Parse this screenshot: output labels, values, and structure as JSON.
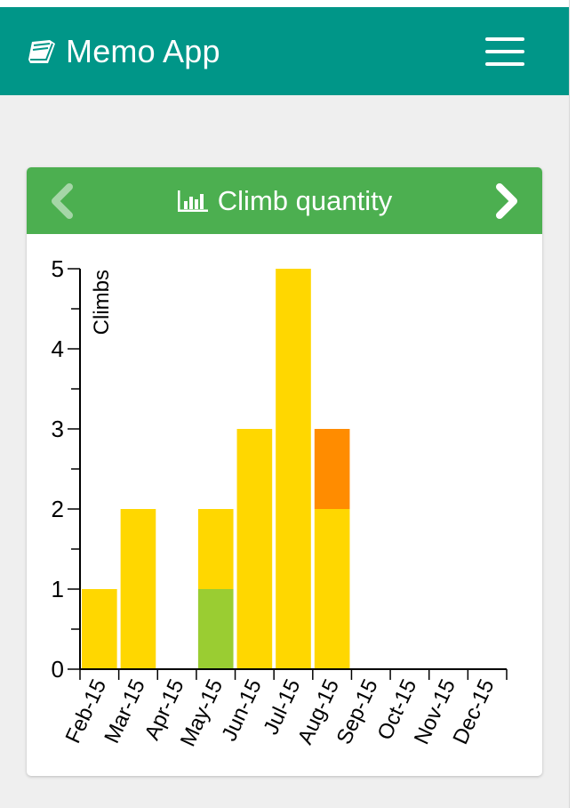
{
  "app": {
    "title": "Memo App",
    "brand_icon": "book-icon",
    "menu_icon": "hamburger-menu-icon"
  },
  "card": {
    "title": "Climb quantity",
    "title_icon": "bar-chart-icon",
    "prev_icon": "chevron-left-icon",
    "next_icon": "chevron-right-icon"
  },
  "colors": {
    "navbar": "#009688",
    "card_header": "#4caf50",
    "bar_yellow": "#ffd700",
    "bar_green": "#9acd32",
    "bar_orange": "#ff8c00"
  },
  "chart_data": {
    "type": "bar",
    "stacked": true,
    "categories": [
      "Feb-15",
      "Mar-15",
      "Apr-15",
      "May-15",
      "Jun-15",
      "Jul-15",
      "Aug-15",
      "Sep-15",
      "Oct-15",
      "Nov-15",
      "Dec-15"
    ],
    "series": [
      {
        "color": "#9acd32",
        "values": [
          0,
          0,
          0,
          1,
          0,
          0,
          0,
          0,
          0,
          0,
          0
        ]
      },
      {
        "color": "#ffd700",
        "values": [
          1,
          2,
          0,
          1,
          3,
          5,
          2,
          0,
          0,
          0,
          0
        ]
      },
      {
        "color": "#ff8c00",
        "values": [
          0,
          0,
          0,
          0,
          0,
          0,
          1,
          0,
          0,
          0,
          0
        ]
      }
    ],
    "title": "",
    "xlabel": "",
    "ylabel": "Climbs",
    "ylim": [
      0,
      5
    ],
    "yticks": [
      "0",
      "1",
      "2",
      "3",
      "4",
      "5"
    ],
    "grid": false,
    "legend": "none"
  }
}
